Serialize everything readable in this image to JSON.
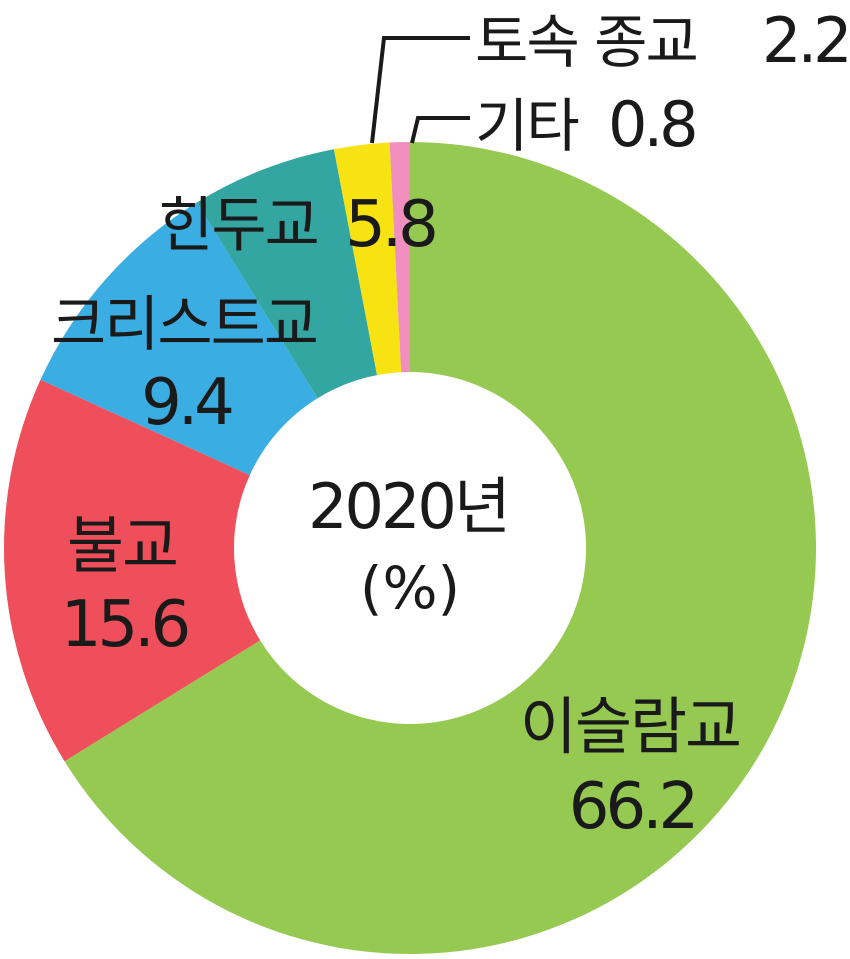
{
  "chart_data": {
    "type": "pie",
    "center_label": "2020년",
    "center_unit": "(%)",
    "slices": [
      {
        "label": "이슬람교",
        "value": 66.2,
        "value_text": "66.2",
        "color": "#96c952"
      },
      {
        "label": "불교",
        "value": 15.6,
        "value_text": "15.6",
        "color": "#ef4f5a"
      },
      {
        "label": "크리스트교",
        "value": 9.4,
        "value_text": "9.4",
        "color": "#3aaee3"
      },
      {
        "label": "힌두교",
        "value": 5.8,
        "value_text": "5.8",
        "color": "#33a6a1"
      },
      {
        "label": "토속 종교",
        "value": 2.2,
        "value_text": "2.2",
        "color": "#f7e212"
      },
      {
        "label": "기타",
        "value": 0.8,
        "value_text": "0.8",
        "color": "#f08fbd"
      }
    ]
  }
}
